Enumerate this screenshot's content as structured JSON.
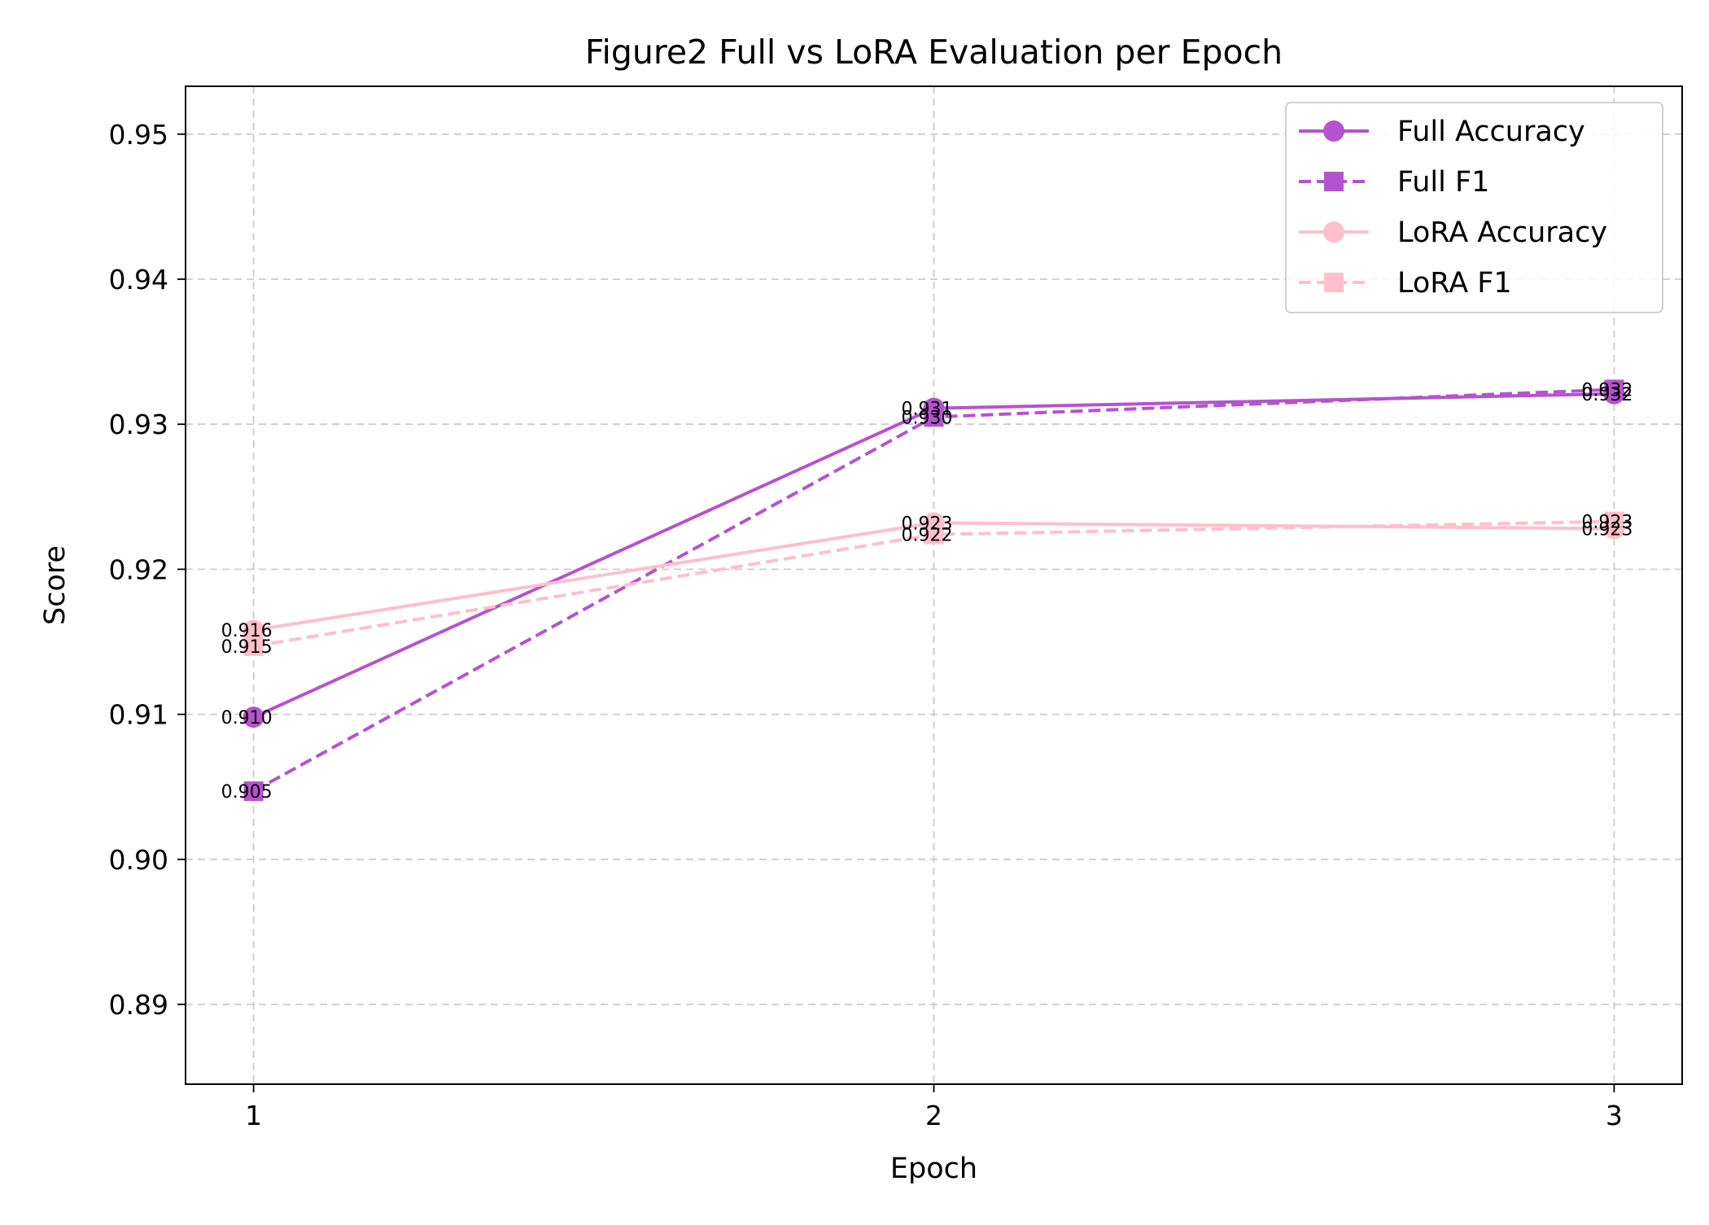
{
  "chart_data": {
    "type": "line",
    "title": "Figure2 Full vs LoRA Evaluation per Epoch",
    "xlabel": "Epoch",
    "ylabel": "Score",
    "x": [
      1,
      2,
      3
    ],
    "x_tick_labels": [
      "1",
      "2",
      "3"
    ],
    "xlim": [
      0.9,
      3.1
    ],
    "ylim": [
      0.8845,
      0.9533
    ],
    "y_ticks": [
      0.89,
      0.9,
      0.91,
      0.92,
      0.93,
      0.94,
      0.95
    ],
    "y_tick_labels": [
      "0.89",
      "0.90",
      "0.91",
      "0.92",
      "0.93",
      "0.94",
      "0.95"
    ],
    "grid": true,
    "legend_position": "top-right",
    "series": [
      {
        "name": "Full Accuracy",
        "values": [
          0.9098,
          0.9311,
          0.9321
        ],
        "labels": [
          "0.910",
          "0.931",
          "0.932"
        ],
        "color": "#b553cf",
        "line_style": "solid",
        "marker": "circle"
      },
      {
        "name": "Full F1",
        "values": [
          0.9047,
          0.9305,
          0.9324
        ],
        "labels": [
          "0.905",
          "0.930",
          "0.932"
        ],
        "color": "#b553cf",
        "line_style": "dashed",
        "marker": "square"
      },
      {
        "name": "LoRA Accuracy",
        "values": [
          0.9158,
          0.9232,
          0.9228
        ],
        "labels": [
          "0.916",
          "0.923",
          "0.923"
        ],
        "color": "#ffc0cb",
        "line_style": "solid",
        "marker": "circle"
      },
      {
        "name": "LoRA F1",
        "values": [
          0.9147,
          0.9224,
          0.9233
        ],
        "labels": [
          "0.915",
          "0.922",
          "0.923"
        ],
        "color": "#ffc0cb",
        "line_style": "dashed",
        "marker": "square"
      }
    ]
  }
}
